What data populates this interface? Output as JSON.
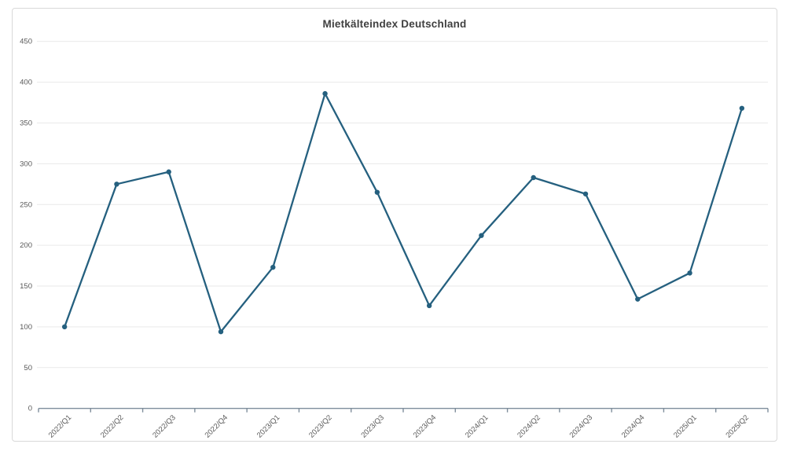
{
  "chart_data": {
    "type": "line",
    "title": "Mietkälteindex Deutschland",
    "categories": [
      "2022/Q1",
      "2022/Q2",
      "2022/Q3",
      "2022/Q4",
      "2023/Q1",
      "2023/Q2",
      "2023/Q3",
      "2023/Q4",
      "2024/Q1",
      "2024/Q2",
      "2024/Q3",
      "2024/Q4",
      "2025/Q1",
      "2025/Q2"
    ],
    "values": [
      100,
      275,
      290,
      94,
      173,
      386,
      265,
      126,
      212,
      283,
      263,
      134,
      166,
      368
    ],
    "xlabel": "",
    "ylabel": "",
    "ylim": [
      0,
      450
    ],
    "ytick_step": 50,
    "grid": true,
    "legend": "none",
    "marker": "circle",
    "x_label_rotation": -45
  },
  "colors": {
    "background": "#ffffff",
    "card_border": "#d9d9d9",
    "title": "#404040",
    "tick_label": "#595959",
    "gridline": "#e9e9e9",
    "axis_line": "#7e8d9b",
    "series_line": "#25607f",
    "marker_fill": "#25607f"
  }
}
